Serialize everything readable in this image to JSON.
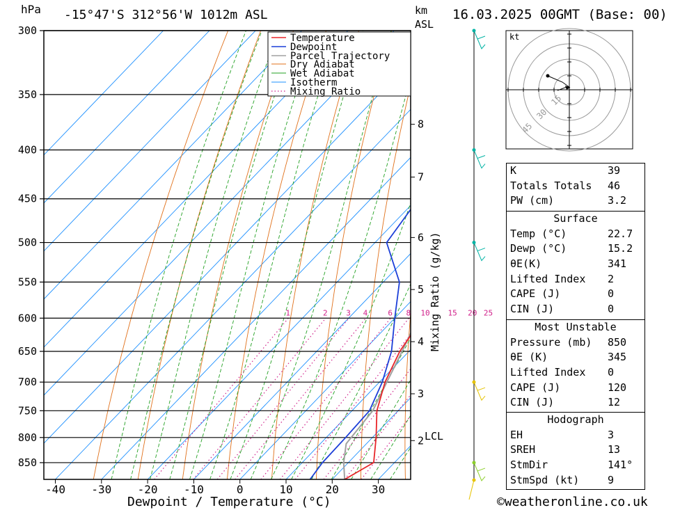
{
  "header": {
    "pressure_unit": "hPa",
    "location": "-15°47'S  312°56'W  1012m  ASL",
    "height_unit_line1": "km",
    "height_unit_line2": "ASL",
    "datetime": "16.03.2025  00GMT  (Base: 00)"
  },
  "chart_data": {
    "type": "line",
    "title": "",
    "xlabel": "Dewpoint / Temperature (°C)",
    "ylabel": "hPa",
    "right_axis_label": "Mixing Ratio (g/kg)",
    "xlim": [
      -40,
      35
    ],
    "ylim": [
      885,
      300
    ],
    "y_scale": "log (skew-T)",
    "pressure_ticks": [
      300,
      350,
      400,
      450,
      500,
      550,
      600,
      650,
      700,
      750,
      800,
      850
    ],
    "temperature_ticks": [
      -40,
      -30,
      -20,
      -10,
      0,
      10,
      20,
      30
    ],
    "height_ticks_km": [
      "8",
      "7",
      "6",
      "5",
      "4",
      "3",
      "2"
    ],
    "lcl_label": "LCL",
    "mixing_ratio_labels": [
      "1",
      "2",
      "3",
      "4",
      "6",
      "8",
      "10",
      "15",
      "20",
      "25"
    ],
    "legend": [
      "Temperature",
      "Dewpoint",
      "Parcel Trajectory",
      "Dry Adiabat",
      "Wet Adiabat",
      "Isotherm",
      "Mixing Ratio"
    ],
    "legend_position": "top-right",
    "series": [
      {
        "name": "Temperature",
        "color": "#e8262a",
        "points": [
          [
            885,
            22.7
          ],
          [
            850,
            25.5
          ],
          [
            800,
            20.8
          ],
          [
            750,
            15.4
          ],
          [
            700,
            11.2
          ],
          [
            650,
            8.0
          ],
          [
            600,
            6.0
          ],
          [
            550,
            2.7
          ],
          [
            500,
            -1.7
          ],
          [
            450,
            -7.1
          ],
          [
            400,
            -13.2
          ],
          [
            350,
            -21.8
          ]
        ]
      },
      {
        "name": "Dewpoint",
        "color": "#1c3fd8",
        "points": [
          [
            885,
            15.2
          ],
          [
            850,
            14.4
          ],
          [
            800,
            14.2
          ],
          [
            750,
            13.8
          ],
          [
            700,
            10.6
          ],
          [
            650,
            6.2
          ],
          [
            600,
            0.0
          ],
          [
            550,
            -6.5
          ],
          [
            500,
            -17.5
          ],
          [
            450,
            -19.7
          ],
          [
            400,
            -23.0
          ],
          [
            350,
            -40.8
          ],
          [
            300,
            -55
          ]
        ]
      },
      {
        "name": "Parcel Trajectory",
        "color": "#a0a0a0",
        "points": [
          [
            885,
            22.7
          ],
          [
            850,
            19.0
          ],
          [
            812,
            15.6
          ],
          [
            750,
            14.5
          ],
          [
            700,
            11.6
          ],
          [
            650,
            8.5
          ],
          [
            600,
            5.0
          ],
          [
            550,
            1.0
          ],
          [
            500,
            -3.6
          ],
          [
            450,
            -9.2
          ],
          [
            400,
            -15.6
          ],
          [
            350,
            -23.5
          ],
          [
            300,
            -33.5
          ]
        ]
      }
    ]
  },
  "hodograph": {
    "unit": "kt",
    "rings": [
      "15",
      "30",
      "45"
    ]
  },
  "wind_barb_colors": [
    "#00b3a4",
    "#00b3a4",
    "#00b3a4",
    "#e6c300",
    "#8ccf2a",
    "#e6c300"
  ],
  "indices": {
    "rows": [
      {
        "label": "K",
        "value": "39"
      },
      {
        "label": "Totals Totals",
        "value": "46"
      },
      {
        "label": "PW (cm)",
        "value": "3.2"
      }
    ]
  },
  "surface": {
    "title": "Surface",
    "rows": [
      {
        "label": "Temp (°C)",
        "value": "22.7"
      },
      {
        "label": "Dewp (°C)",
        "value": "15.2"
      },
      {
        "label": "θE(K)",
        "value": "341"
      },
      {
        "label": "Lifted Index",
        "value": "2"
      },
      {
        "label": "CAPE (J)",
        "value": "0"
      },
      {
        "label": "CIN (J)",
        "value": "0"
      }
    ]
  },
  "most_unstable": {
    "title": "Most Unstable",
    "rows": [
      {
        "label": "Pressure (mb)",
        "value": "850"
      },
      {
        "label": "θE (K)",
        "value": "345"
      },
      {
        "label": "Lifted Index",
        "value": "0"
      },
      {
        "label": "CAPE (J)",
        "value": "120"
      },
      {
        "label": "CIN (J)",
        "value": "12"
      }
    ]
  },
  "hodograph_table": {
    "title": "Hodograph",
    "rows": [
      {
        "label": "EH",
        "value": "3"
      },
      {
        "label": "SREH",
        "value": "13"
      },
      {
        "label": "StmDir",
        "value": "141°"
      },
      {
        "label": "StmSpd (kt)",
        "value": "9"
      }
    ]
  },
  "footer": {
    "copyright": "©weatheronline.co.uk"
  }
}
